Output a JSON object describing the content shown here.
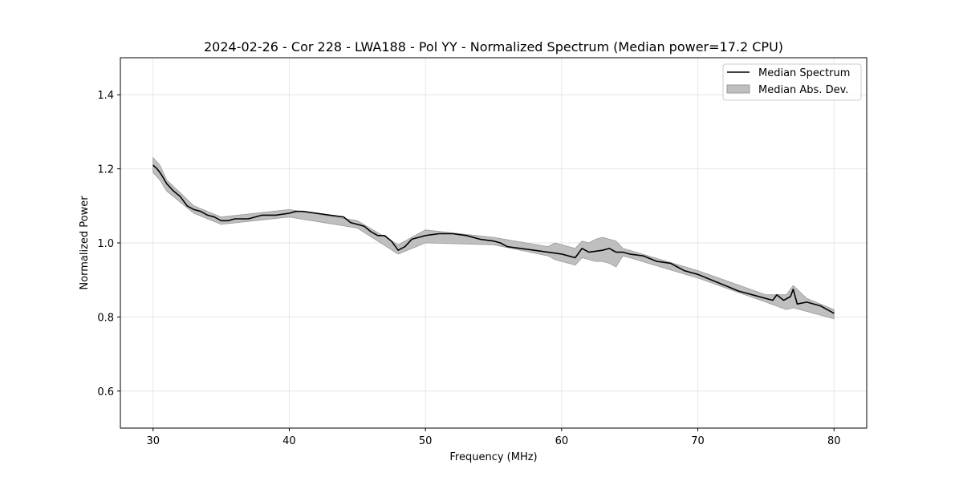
{
  "chart_data": {
    "type": "line",
    "title": "2024-02-26 - Cor 228 - LWA188 - Pol YY - Normalized Spectrum (Median power=17.2 CPU)",
    "xlabel": "Frequency (MHz)",
    "ylabel": "Normalized Power",
    "xlim": [
      27.6,
      82.4
    ],
    "ylim": [
      0.5,
      1.5
    ],
    "xticks": [
      30,
      40,
      50,
      60,
      70,
      80
    ],
    "yticks": [
      0.6,
      0.8,
      1.0,
      1.2,
      1.4
    ],
    "xtick_labels": [
      "30",
      "40",
      "50",
      "60",
      "70",
      "80"
    ],
    "ytick_labels": [
      "0.6",
      "0.8",
      "1.0",
      "1.2",
      "1.4"
    ],
    "grid": true,
    "legend_position": "top-right",
    "legend": [
      "Median Spectrum",
      "Median Abs. Dev."
    ],
    "colors": {
      "line": "#000000",
      "band": "#bfbfbf",
      "band_edge": "#999999",
      "grid": "#e6e6e6"
    },
    "series": [
      {
        "name": "Median Spectrum",
        "x": [
          30.0,
          30.3,
          30.6,
          31.0,
          31.5,
          32.0,
          32.5,
          33.0,
          33.5,
          34.0,
          34.5,
          35.0,
          35.5,
          36.0,
          37.0,
          38.0,
          39.0,
          40.0,
          40.5,
          41.0,
          42.0,
          43.0,
          44.0,
          44.5,
          45.0,
          45.5,
          46.0,
          46.5,
          47.0,
          47.5,
          48.0,
          48.5,
          49.0,
          49.5,
          50.0,
          51.0,
          52.0,
          53.0,
          54.0,
          55.0,
          55.5,
          56.0,
          57.0,
          58.0,
          59.0,
          60.0,
          60.5,
          61.0,
          61.5,
          62.0,
          63.0,
          63.5,
          64.0,
          64.5,
          65.0,
          66.0,
          67.0,
          68.0,
          68.5,
          69.0,
          70.0,
          71.0,
          72.0,
          73.0,
          74.0,
          75.0,
          75.5,
          75.8,
          76.3,
          76.8,
          77.0,
          77.3,
          78.0,
          79.0,
          79.5,
          80.0
        ],
        "values": [
          1.21,
          1.2,
          1.185,
          1.16,
          1.14,
          1.125,
          1.1,
          1.09,
          1.085,
          1.075,
          1.07,
          1.06,
          1.06,
          1.065,
          1.065,
          1.075,
          1.075,
          1.08,
          1.085,
          1.085,
          1.08,
          1.075,
          1.07,
          1.055,
          1.05,
          1.045,
          1.03,
          1.02,
          1.02,
          1.005,
          0.98,
          0.99,
          1.01,
          1.015,
          1.02,
          1.025,
          1.025,
          1.02,
          1.01,
          1.005,
          1.0,
          0.99,
          0.985,
          0.98,
          0.975,
          0.97,
          0.965,
          0.96,
          0.985,
          0.975,
          0.98,
          0.985,
          0.975,
          0.975,
          0.97,
          0.965,
          0.95,
          0.945,
          0.935,
          0.925,
          0.915,
          0.9,
          0.885,
          0.87,
          0.86,
          0.85,
          0.845,
          0.86,
          0.845,
          0.855,
          0.875,
          0.835,
          0.84,
          0.83,
          0.82,
          0.81
        ]
      }
    ],
    "band": {
      "name": "Median Abs. Dev.",
      "x": [
        30.0,
        30.5,
        31.0,
        32.0,
        33.0,
        35.0,
        40.0,
        45.0,
        48.0,
        50.0,
        55.0,
        59.0,
        59.5,
        60.0,
        60.5,
        61.0,
        61.5,
        62.0,
        62.5,
        63.0,
        63.5,
        64.0,
        64.5,
        65.0,
        70.0,
        75.0,
        76.5,
        77.0,
        78.0,
        80.0
      ],
      "upper": [
        1.23,
        1.21,
        1.17,
        1.135,
        1.1,
        1.07,
        1.09,
        1.06,
        0.995,
        1.035,
        1.015,
        0.99,
        1.0,
        0.995,
        0.99,
        0.985,
        1.005,
        1.0,
        1.01,
        1.015,
        1.01,
        1.005,
        0.985,
        0.98,
        0.925,
        0.86,
        0.86,
        0.885,
        0.85,
        0.82
      ],
      "lower": [
        1.19,
        1.17,
        1.14,
        1.11,
        1.08,
        1.05,
        1.07,
        1.04,
        0.97,
        1.0,
        0.995,
        0.965,
        0.955,
        0.95,
        0.945,
        0.94,
        0.96,
        0.955,
        0.95,
        0.95,
        0.945,
        0.935,
        0.965,
        0.96,
        0.905,
        0.84,
        0.82,
        0.825,
        0.815,
        0.795
      ]
    }
  }
}
